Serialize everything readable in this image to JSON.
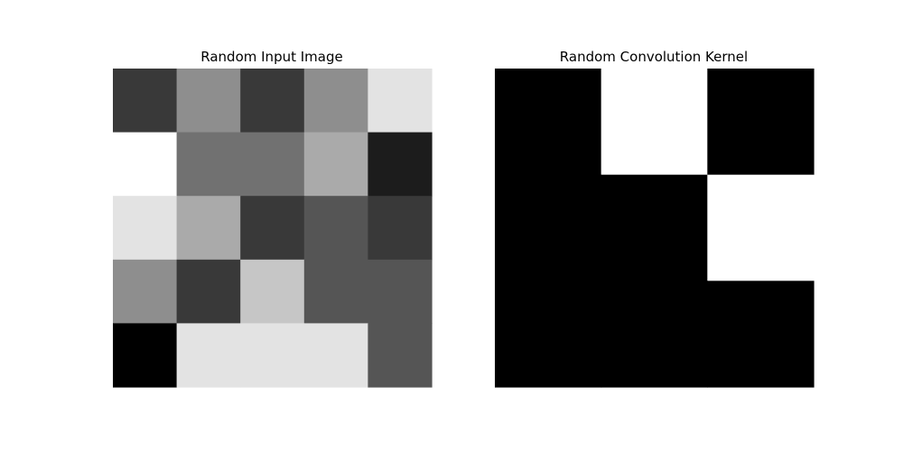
{
  "chart_data": [
    {
      "type": "heatmap",
      "title": "Random Input Image",
      "colormap": "gray",
      "axes": "off",
      "grid": false,
      "rows": 5,
      "cols": 5,
      "vmin": 0,
      "vmax": 9,
      "values": [
        [
          2,
          5,
          2,
          5,
          8
        ],
        [
          9,
          4,
          4,
          6,
          1
        ],
        [
          8,
          6,
          2,
          3,
          2
        ],
        [
          5,
          2,
          7,
          3,
          3
        ],
        [
          0,
          8,
          8,
          8,
          3
        ]
      ]
    },
    {
      "type": "heatmap",
      "title": "Random Convolution Kernel",
      "colormap": "gray",
      "axes": "off",
      "grid": false,
      "rows": 3,
      "cols": 3,
      "vmin": 0,
      "vmax": 1,
      "values": [
        [
          0,
          1,
          0
        ],
        [
          0,
          0,
          1
        ],
        [
          0,
          0,
          0
        ]
      ]
    }
  ]
}
